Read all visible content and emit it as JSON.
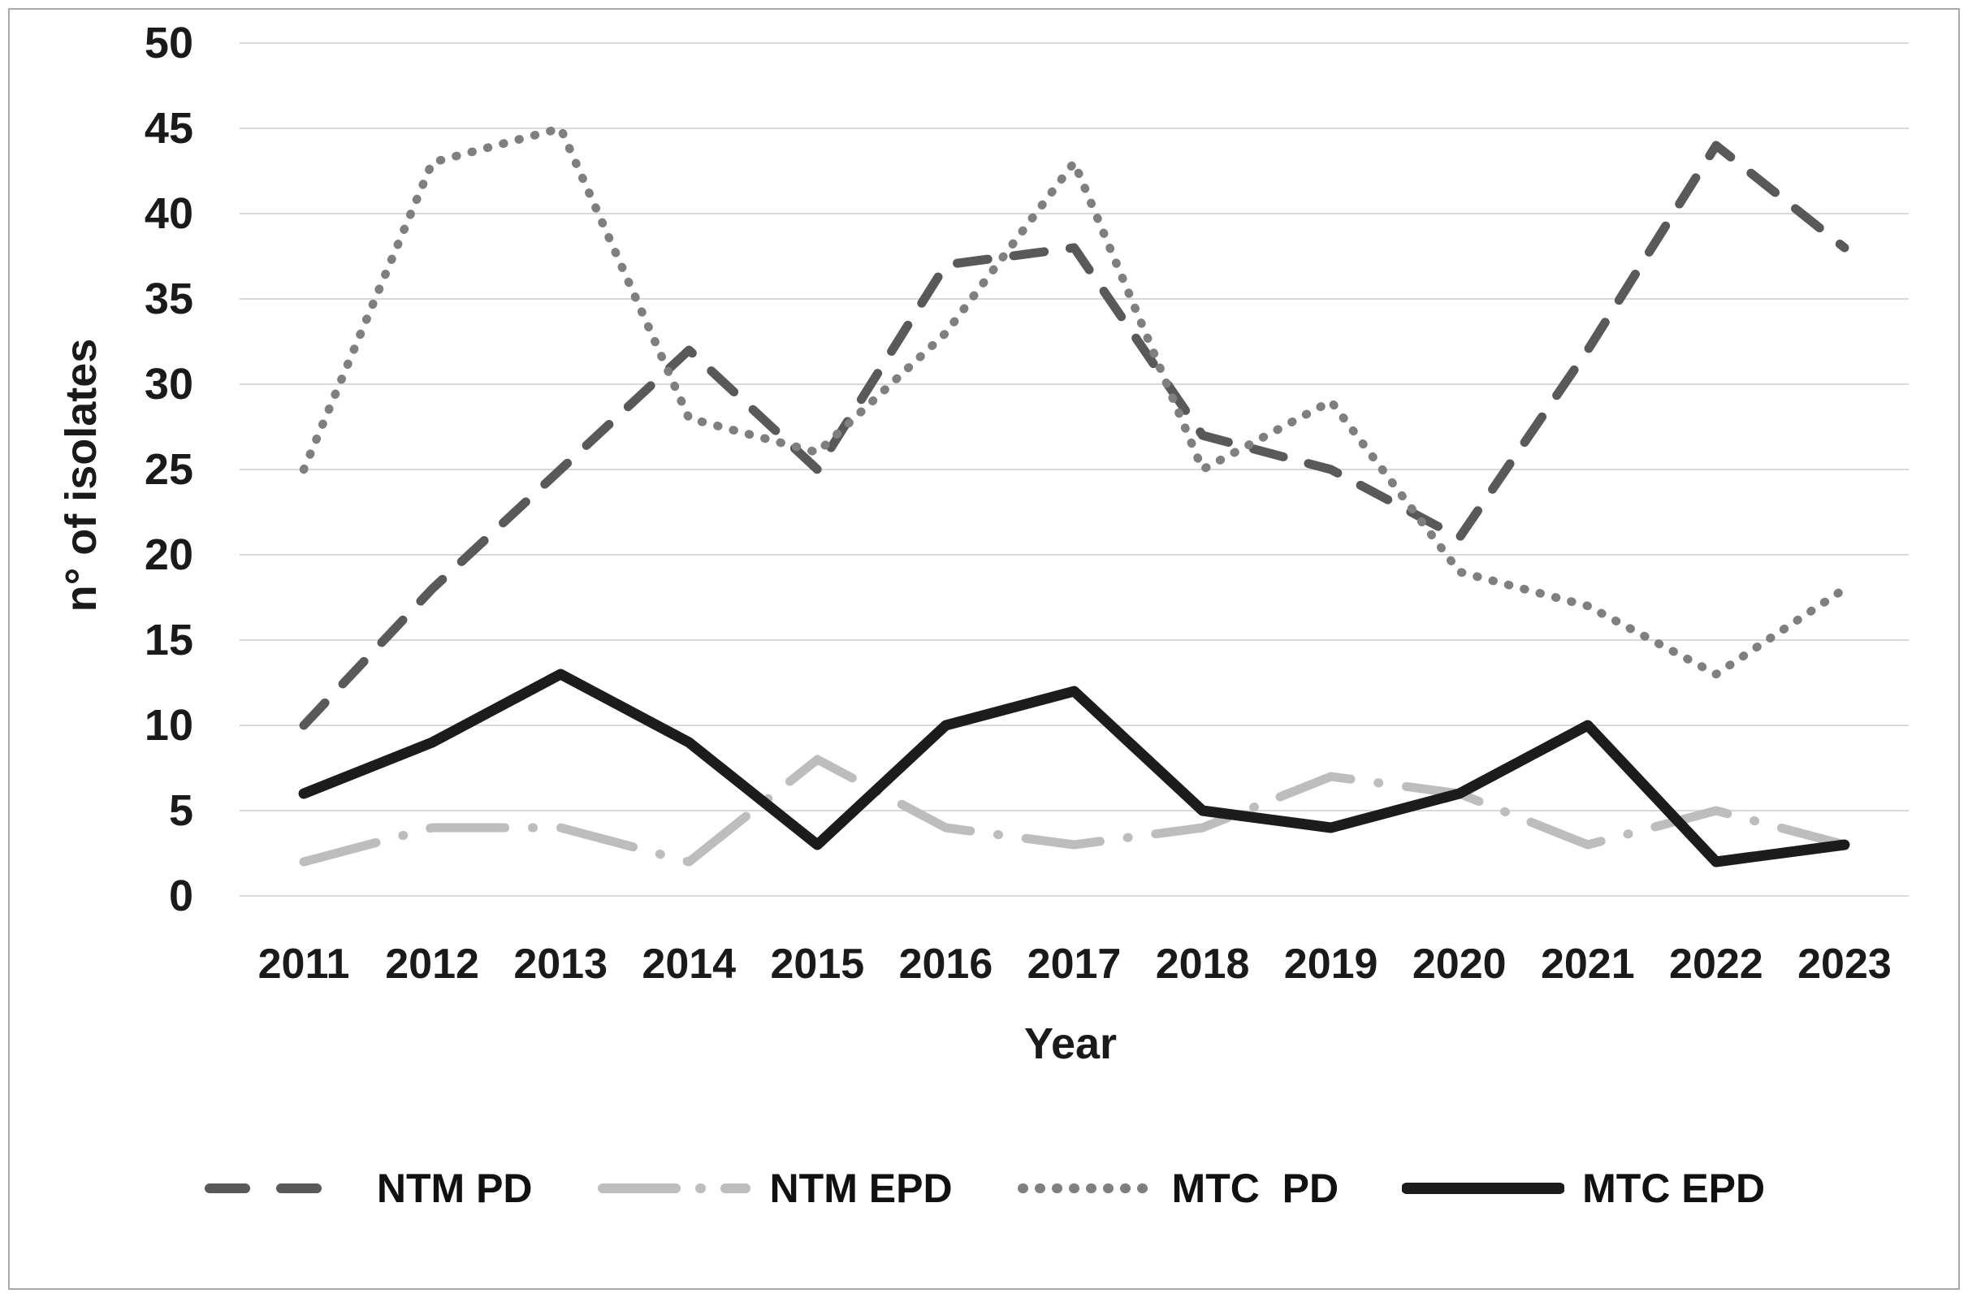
{
  "figure": {
    "background": "#ffffff",
    "border_color": "#a9a9a9",
    "text_color": "#1a1a1a",
    "gridline_color": "#d9d9d9"
  },
  "chart_data": {
    "type": "line",
    "title": "",
    "xlabel": "Year",
    "ylabel": "n° of isolates",
    "categories": [
      "2011",
      "2012",
      "2013",
      "2014",
      "2015",
      "2016",
      "2017",
      "2018",
      "2019",
      "2020",
      "2021",
      "2022",
      "2023"
    ],
    "ylim": [
      0,
      50
    ],
    "ytick_step": 5,
    "yticks": [
      "0",
      "5",
      "10",
      "15",
      "20",
      "25",
      "30",
      "35",
      "40",
      "45",
      "50"
    ],
    "grid": "horizontal",
    "legend_position": "bottom",
    "series": [
      {
        "name": "NTM PD",
        "style": "dashed",
        "color": "#595959",
        "values": [
          10,
          18,
          25,
          32,
          25,
          37,
          38,
          27,
          25,
          21,
          32,
          44,
          38
        ]
      },
      {
        "name": "NTM EPD",
        "style": "dash-dot",
        "color": "#bdbdbd",
        "values": [
          2,
          4,
          4,
          2,
          8,
          4,
          3,
          4,
          7,
          6,
          3,
          5,
          3
        ]
      },
      {
        "name": "MTC  PD",
        "style": "dotted",
        "color": "#7f7f7f",
        "values": [
          25,
          43,
          45,
          28,
          26,
          33,
          43,
          25,
          29,
          19,
          17,
          13,
          18
        ]
      },
      {
        "name": "MTC EPD",
        "style": "solid",
        "color": "#1c1c1c",
        "values": [
          6,
          9,
          13,
          9,
          3,
          10,
          12,
          5,
          4,
          6,
          10,
          2,
          3
        ]
      }
    ]
  }
}
